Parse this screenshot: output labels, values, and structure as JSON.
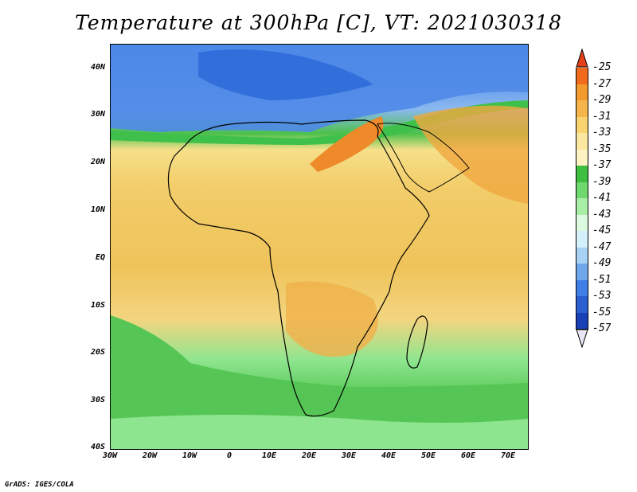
{
  "title": "Temperature at 300hPa [C], VT: 2021030318",
  "credit": "GrADS: IGES/COLA",
  "map": {
    "lat_labels": [
      "40N",
      "30N",
      "20N",
      "10N",
      "EQ",
      "10S",
      "20S",
      "30S",
      "40S"
    ],
    "lon_labels": [
      "30W",
      "20W",
      "10W",
      "0",
      "10E",
      "20E",
      "30E",
      "40E",
      "50E",
      "60E",
      "70E"
    ],
    "colorbar": {
      "labels": [
        "-25",
        "-27",
        "-29",
        "-31",
        "-33",
        "-35",
        "-37",
        "-39",
        "-41",
        "-43",
        "-45",
        "-47",
        "-49",
        "-51",
        "-53",
        "-55",
        "-57"
      ],
      "colors": [
        "#e5401c",
        "#f26b1c",
        "#f39a2e",
        "#f5b54b",
        "#f9d36e",
        "#fbe7a0",
        "#fdf2c4",
        "#3fbf3f",
        "#6fd86f",
        "#a9eea6",
        "#dcfadf",
        "#d4f0fb",
        "#a7d2f4",
        "#6fa8ea",
        "#3f7fe6",
        "#2a5fd1",
        "#1a40b8",
        "#0a1f8a"
      ]
    }
  }
}
